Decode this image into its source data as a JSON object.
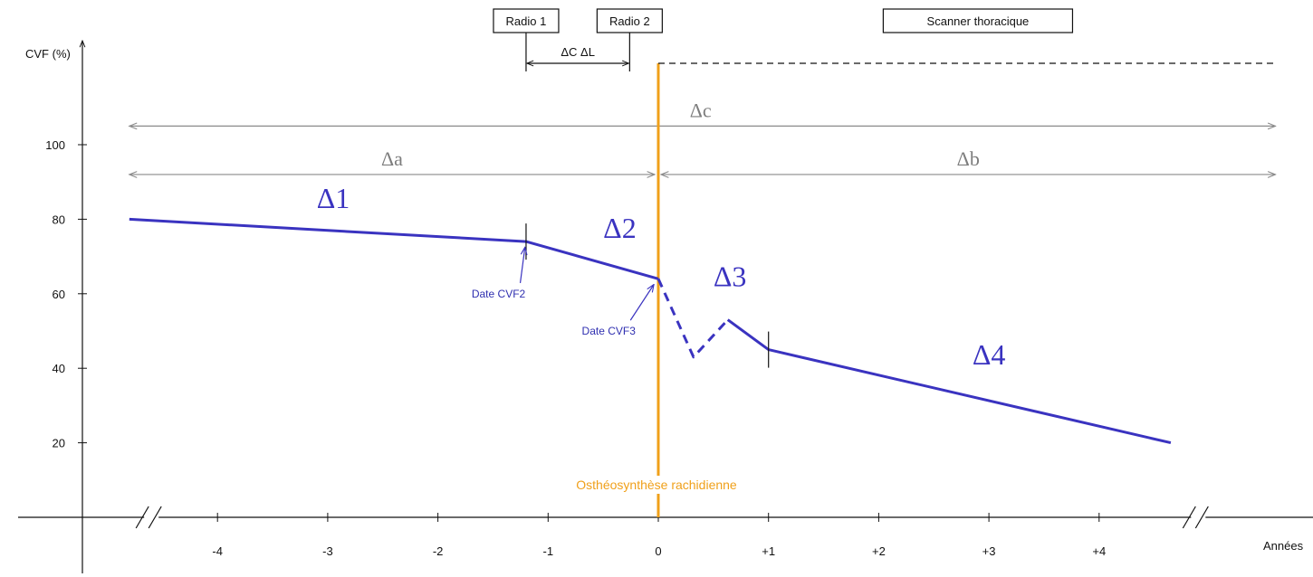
{
  "chart_data": {
    "type": "line",
    "xlabel": "Années",
    "ylabel": "CVF (%)",
    "xlim": [
      -5.1,
      5.7
    ],
    "ylim": [
      0,
      120
    ],
    "x_ticks": [
      {
        "value": -4,
        "label": "-4"
      },
      {
        "value": -3,
        "label": "-3"
      },
      {
        "value": -2,
        "label": "-2"
      },
      {
        "value": -1,
        "label": "-1"
      },
      {
        "value": 0,
        "label": "0"
      },
      {
        "value": 1,
        "label": "+1"
      },
      {
        "value": 2,
        "label": "+2"
      },
      {
        "value": 3,
        "label": "+3"
      },
      {
        "value": 4,
        "label": "+4"
      }
    ],
    "y_ticks": [
      {
        "value": 20,
        "label": "20"
      },
      {
        "value": 40,
        "label": "40"
      },
      {
        "value": 60,
        "label": "60"
      },
      {
        "value": 80,
        "label": "80"
      },
      {
        "value": 100,
        "label": "100"
      }
    ],
    "axis_breaks_x": [
      -4.6,
      4.9
    ],
    "series": [
      {
        "style": "solid",
        "color": "#3a33c0",
        "points": [
          [
            -4.8,
            80
          ],
          [
            -1.2,
            74
          ],
          [
            0,
            64
          ]
        ]
      },
      {
        "style": "dashed",
        "color": "#3a33c0",
        "points": [
          [
            0,
            64
          ],
          [
            0.32,
            43
          ],
          [
            0.63,
            53
          ]
        ]
      },
      {
        "style": "solid",
        "color": "#3a33c0",
        "points": [
          [
            0.63,
            53
          ],
          [
            1.0,
            45
          ],
          [
            4.65,
            20
          ]
        ]
      }
    ],
    "segment_markers": [
      {
        "x": -1.2,
        "y": 74
      },
      {
        "x": 1.0,
        "y": 45
      }
    ],
    "segment_labels": [
      {
        "text": "Δ1",
        "x": -3.1,
        "y": 83
      },
      {
        "text": "Δ2",
        "x": -0.5,
        "y": 75
      },
      {
        "text": "Δ3",
        "x": 0.5,
        "y": 62
      },
      {
        "text": "Δ4",
        "x": 2.85,
        "y": 41
      }
    ],
    "date_annotations": [
      {
        "text": "Date CVF2",
        "text_x": -1.45,
        "text_y": 59,
        "arrow_to": [
          -1.21,
          72.5
        ]
      },
      {
        "text": "Date CVF3",
        "text_x": -0.45,
        "text_y": 49,
        "arrow_to": [
          -0.04,
          62.5
        ]
      }
    ],
    "vertical_event": {
      "x": 0,
      "label": "Osthéosynthèse rachidienne",
      "color": "#f0a01a"
    },
    "imaging_boxes": [
      {
        "label": "Radio 1",
        "x": -1.2
      },
      {
        "label": "Radio 2",
        "x": -0.26
      },
      {
        "label": "Scanner thoracique",
        "x_start": 2.0,
        "x_end": 3.8
      }
    ],
    "radio_interval": {
      "label": "ΔC ΔL",
      "x_start": -1.2,
      "x_end": -0.26,
      "y": 121
    },
    "dashed_followup": {
      "x_start": 0,
      "x_end": 5.6,
      "y": 124
    },
    "period_arrows": [
      {
        "label": "Δc",
        "x_start": -4.8,
        "x_end": 5.6,
        "y": 105
      },
      {
        "label": "Δa",
        "x_start": -4.8,
        "x_end": 0,
        "y": 92
      },
      {
        "label": "Δb",
        "x_start": 0,
        "x_end": 5.6,
        "y": 92
      }
    ]
  }
}
